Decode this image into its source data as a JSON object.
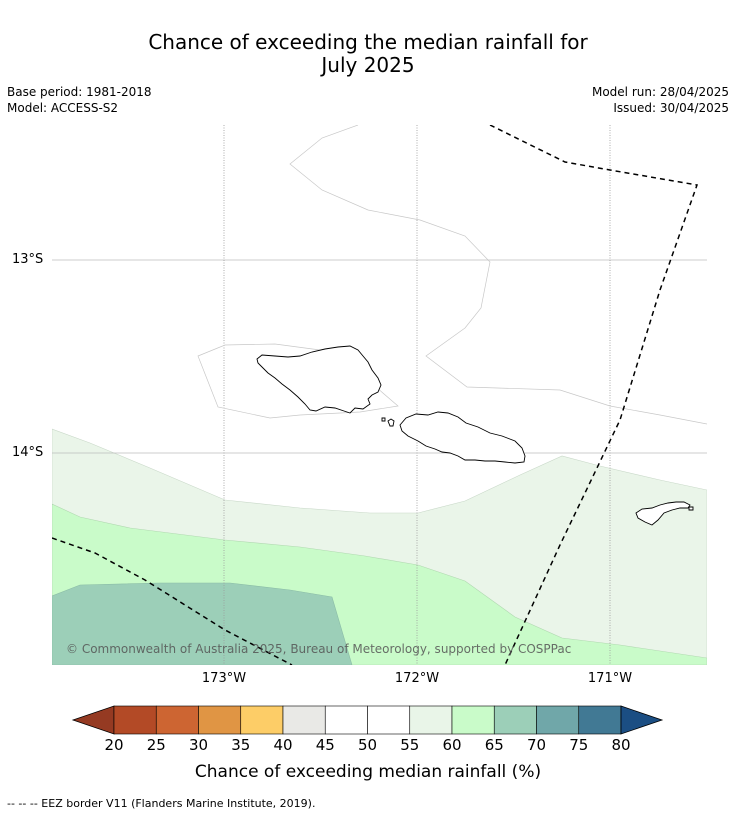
{
  "title_line1": "Chance of exceeding the median rainfall for",
  "title_line2": "July 2025",
  "base_period": "Base period: 1981-2018",
  "model": "Model: ACCESS-S2",
  "model_run": "Model run: 28/04/2025",
  "issued": "Issued: 30/04/2025",
  "map": {
    "lat_labels": [
      "13°S",
      "14°S"
    ],
    "lon_labels": [
      "173°W",
      "172°W",
      "171°W"
    ],
    "copyright": "© Commonwealth of Australia 2025, Bureau of Meteorology, supported by COSPPac"
  },
  "colorbar": {
    "ticks": [
      "20",
      "25",
      "30",
      "35",
      "40",
      "45",
      "50",
      "55",
      "60",
      "65",
      "70",
      "75",
      "80"
    ],
    "colors": [
      "#b34a26",
      "#cd6532",
      "#e09544",
      "#fdcd67",
      "#e9e9e6",
      "#ffffff",
      "#ffffff",
      "#e9f5e8",
      "#c9fbc9",
      "#9ccfb8",
      "#70a7a9",
      "#417994"
    ],
    "under_color": "#953a22",
    "over_color": "#1b4e83",
    "label": "Chance of exceeding median rainfall (%)"
  },
  "footer": "--  --  -- EEZ border V11 (Flanders Marine Institute, 2019)."
}
